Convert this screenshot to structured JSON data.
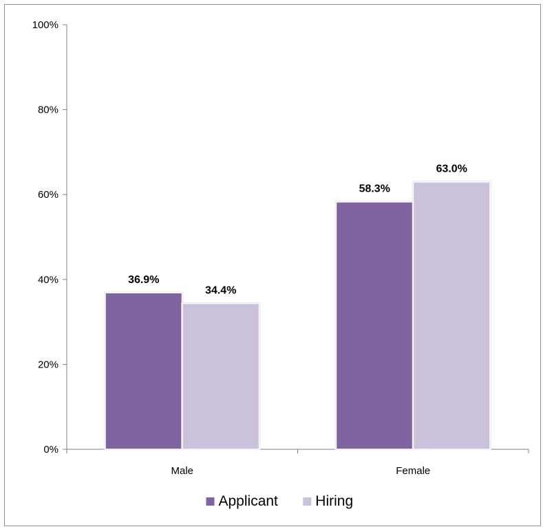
{
  "chart_data": {
    "type": "bar",
    "categories": [
      "Male",
      "Female"
    ],
    "series": [
      {
        "name": "Applicant",
        "values": [
          36.9,
          58.3
        ],
        "labels": [
          "36.9%",
          "58.3%"
        ],
        "color": "#8064a2"
      },
      {
        "name": "Hiring",
        "values": [
          34.4,
          63.0
        ],
        "labels": [
          "34.4%",
          "63.0%"
        ],
        "color": "#ccc1da"
      }
    ],
    "ylim": [
      0,
      100
    ],
    "yticks": [
      0,
      20,
      40,
      60,
      80,
      100
    ],
    "ytick_labels": [
      "0%",
      "20%",
      "40%",
      "60%",
      "80%",
      "100%"
    ],
    "title": "",
    "xlabel": "",
    "ylabel": "",
    "legend_position": "bottom",
    "grid": false
  }
}
